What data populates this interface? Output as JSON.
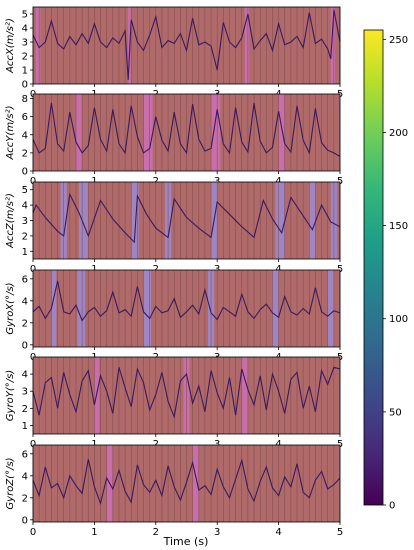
{
  "chart_data": {
    "type": "line",
    "xlabel": "Time (s)",
    "x_ticks": [
      "0",
      "1",
      "2",
      "3",
      "4",
      "5"
    ],
    "xlim": [
      0,
      5
    ],
    "line_color": "#3b1a5e",
    "background_color": "#b06a6a",
    "colormap": "viridis",
    "colorbar": {
      "ticks": [
        "0",
        "50",
        "100",
        "150",
        "200",
        "250"
      ],
      "range": [
        0,
        255
      ],
      "colors": [
        "#440154",
        "#482878",
        "#3e4989",
        "#31688e",
        "#26828e",
        "#1f9e89",
        "#35b779",
        "#6ece58",
        "#b5de2b",
        "#fde725"
      ]
    },
    "panels": [
      {
        "ylabel": "AccX(m/s²)",
        "ylim": [
          0,
          5.5
        ],
        "y_ticks": [
          "0",
          "1",
          "2",
          "3",
          "4",
          "5"
        ],
        "highlights": [
          {
            "x0": 0.05,
            "x1": 0.12,
            "color": "#d070c0"
          },
          {
            "x0": 1.55,
            "x1": 1.6,
            "color": "#d070c0"
          },
          {
            "x0": 3.45,
            "x1": 3.52,
            "color": "#d070c0"
          },
          {
            "x0": 4.85,
            "x1": 4.92,
            "color": "#d070c0"
          }
        ],
        "x": [
          0,
          0.1,
          0.2,
          0.3,
          0.4,
          0.5,
          0.6,
          0.7,
          0.8,
          0.9,
          1.0,
          1.1,
          1.2,
          1.3,
          1.4,
          1.5,
          1.55,
          1.6,
          1.7,
          1.8,
          1.9,
          2.0,
          2.1,
          2.2,
          2.3,
          2.4,
          2.5,
          2.6,
          2.7,
          2.8,
          2.9,
          3.0,
          3.1,
          3.2,
          3.3,
          3.4,
          3.5,
          3.6,
          3.7,
          3.8,
          3.9,
          4.0,
          4.1,
          4.2,
          4.3,
          4.4,
          4.5,
          4.6,
          4.7,
          4.8,
          4.85,
          4.9,
          5.0
        ],
        "values": [
          3.5,
          2.6,
          3.0,
          4.5,
          2.9,
          2.5,
          3.4,
          2.8,
          3.6,
          2.9,
          4.3,
          3.0,
          2.6,
          3.3,
          2.9,
          3.8,
          0.3,
          4.6,
          3.0,
          2.4,
          3.5,
          4.8,
          2.6,
          3.1,
          2.9,
          3.6,
          2.4,
          4.7,
          2.8,
          3.0,
          2.7,
          1.0,
          4.4,
          3.0,
          2.6,
          3.3,
          5.0,
          2.5,
          3.1,
          3.6,
          2.4,
          4.3,
          2.8,
          3.0,
          3.4,
          2.6,
          5.1,
          2.9,
          3.2,
          2.5,
          1.8,
          5.3,
          3.0
        ]
      },
      {
        "ylabel": "AccY(m/s²)",
        "ylim": [
          0,
          8.5
        ],
        "y_ticks": [
          "0",
          "2",
          "4",
          "6",
          "8"
        ],
        "highlights": [
          {
            "x0": 0.7,
            "x1": 0.8,
            "color": "#d070c0"
          },
          {
            "x0": 1.8,
            "x1": 1.95,
            "color": "#d070c0"
          },
          {
            "x0": 2.9,
            "x1": 3.05,
            "color": "#d070c0"
          },
          {
            "x0": 4.0,
            "x1": 4.1,
            "color": "#d070c0"
          }
        ],
        "x": [
          0,
          0.1,
          0.2,
          0.3,
          0.4,
          0.5,
          0.6,
          0.7,
          0.8,
          0.9,
          1.0,
          1.1,
          1.2,
          1.3,
          1.4,
          1.5,
          1.6,
          1.7,
          1.8,
          1.9,
          2.0,
          2.1,
          2.2,
          2.3,
          2.4,
          2.5,
          2.6,
          2.7,
          2.8,
          2.9,
          3.0,
          3.1,
          3.2,
          3.3,
          3.4,
          3.5,
          3.6,
          3.7,
          3.8,
          3.9,
          4.0,
          4.1,
          4.2,
          4.3,
          4.4,
          4.5,
          4.6,
          4.7,
          4.8,
          4.9,
          5.0
        ],
        "values": [
          3.5,
          2.0,
          2.5,
          7.5,
          3.0,
          2.2,
          6.5,
          3.2,
          2.0,
          2.8,
          7.0,
          3.5,
          2.2,
          6.8,
          3.0,
          2.0,
          7.2,
          3.8,
          2.0,
          2.5,
          6.0,
          3.4,
          2.2,
          6.5,
          3.0,
          2.0,
          7.4,
          3.5,
          2.2,
          2.5,
          6.8,
          3.0,
          2.0,
          7.0,
          3.2,
          2.1,
          7.5,
          3.3,
          2.0,
          2.6,
          6.6,
          3.0,
          2.1,
          7.2,
          3.4,
          2.0,
          6.9,
          3.1,
          2.3,
          2.0,
          1.6
        ]
      },
      {
        "ylabel": "AccZ(m/s²)",
        "ylim": [
          0.5,
          5.5
        ],
        "y_ticks": [
          "1",
          "2",
          "3",
          "4",
          "5"
        ],
        "highlights": [
          {
            "x0": 0.45,
            "x1": 0.55,
            "color": "#9a90e0"
          },
          {
            "x0": 0.75,
            "x1": 0.9,
            "color": "#9a90e0"
          },
          {
            "x0": 1.6,
            "x1": 1.72,
            "color": "#9a90e0"
          },
          {
            "x0": 2.15,
            "x1": 2.25,
            "color": "#9a90e0"
          },
          {
            "x0": 2.9,
            "x1": 3.0,
            "color": "#9a90e0"
          },
          {
            "x0": 3.95,
            "x1": 4.1,
            "color": "#9a90e0"
          },
          {
            "x0": 4.5,
            "x1": 4.6,
            "color": "#9a90e0"
          },
          {
            "x0": 4.85,
            "x1": 4.95,
            "color": "#9a90e0"
          }
        ],
        "x": [
          0,
          0.05,
          0.2,
          0.4,
          0.5,
          0.6,
          0.75,
          0.9,
          1.1,
          1.3,
          1.5,
          1.65,
          1.7,
          1.85,
          2.0,
          2.2,
          2.3,
          2.5,
          2.7,
          2.9,
          3.0,
          3.2,
          3.4,
          3.6,
          3.75,
          3.9,
          4.05,
          4.2,
          4.4,
          4.55,
          4.7,
          4.85,
          5.0
        ],
        "values": [
          3.5,
          4.0,
          3.2,
          2.3,
          2.0,
          4.7,
          3.5,
          2.0,
          4.3,
          3.1,
          2.2,
          1.6,
          4.6,
          3.4,
          2.5,
          1.9,
          4.4,
          3.2,
          2.5,
          1.9,
          4.2,
          3.4,
          2.6,
          1.9,
          4.3,
          3.1,
          2.2,
          4.5,
          3.3,
          2.4,
          4.0,
          2.9,
          2.6
        ]
      },
      {
        "ylabel": "GyroX(°/s)",
        "ylim": [
          -0.2,
          6.8
        ],
        "y_ticks": [
          "0",
          "2",
          "4",
          "6"
        ],
        "highlights": [
          {
            "x0": 0.3,
            "x1": 0.38,
            "color": "#9a90e0"
          },
          {
            "x0": 0.72,
            "x1": 0.85,
            "color": "#9a90e0"
          },
          {
            "x0": 1.8,
            "x1": 1.92,
            "color": "#9a90e0"
          },
          {
            "x0": 2.85,
            "x1": 2.95,
            "color": "#9a90e0"
          },
          {
            "x0": 3.9,
            "x1": 4.0,
            "color": "#9a90e0"
          },
          {
            "x0": 4.8,
            "x1": 4.9,
            "color": "#9a90e0"
          }
        ],
        "x": [
          0,
          0.1,
          0.2,
          0.3,
          0.4,
          0.5,
          0.6,
          0.7,
          0.8,
          0.9,
          1.0,
          1.1,
          1.2,
          1.3,
          1.4,
          1.5,
          1.6,
          1.7,
          1.8,
          1.9,
          2.0,
          2.1,
          2.2,
          2.3,
          2.4,
          2.5,
          2.6,
          2.7,
          2.8,
          2.9,
          3.0,
          3.1,
          3.2,
          3.3,
          3.4,
          3.5,
          3.6,
          3.7,
          3.8,
          3.9,
          4.0,
          4.1,
          4.2,
          4.3,
          4.4,
          4.5,
          4.6,
          4.7,
          4.8,
          4.9,
          5.0
        ],
        "values": [
          3.0,
          3.5,
          2.4,
          3.3,
          5.8,
          3.0,
          2.8,
          3.6,
          2.2,
          3.0,
          3.4,
          2.6,
          3.1,
          4.8,
          2.9,
          3.2,
          2.6,
          5.3,
          3.0,
          2.4,
          3.5,
          2.9,
          3.1,
          4.2,
          2.5,
          3.0,
          3.6,
          2.8,
          5.0,
          2.9,
          2.3,
          3.4,
          3.0,
          2.6,
          4.6,
          3.0,
          2.4,
          3.2,
          3.7,
          2.9,
          2.5,
          4.4,
          3.0,
          2.7,
          3.3,
          2.8,
          5.2,
          3.0,
          2.6,
          3.1,
          2.9
        ]
      },
      {
        "ylabel": "GyroY(°/s)",
        "ylim": [
          0.5,
          5.0
        ],
        "y_ticks": [
          "1",
          "2",
          "3",
          "4"
        ],
        "highlights": [
          {
            "x0": 1.0,
            "x1": 1.08,
            "color": "#d070c0"
          },
          {
            "x0": 2.45,
            "x1": 2.55,
            "color": "#d070c0"
          },
          {
            "x0": 3.4,
            "x1": 3.5,
            "color": "#d070c0"
          }
        ],
        "x": [
          0,
          0.1,
          0.2,
          0.3,
          0.4,
          0.5,
          0.6,
          0.7,
          0.8,
          0.9,
          1.0,
          1.1,
          1.2,
          1.3,
          1.4,
          1.5,
          1.6,
          1.7,
          1.8,
          1.9,
          2.0,
          2.1,
          2.2,
          2.3,
          2.4,
          2.5,
          2.6,
          2.7,
          2.8,
          2.9,
          3.0,
          3.1,
          3.2,
          3.3,
          3.4,
          3.5,
          3.6,
          3.7,
          3.8,
          3.9,
          4.0,
          4.1,
          4.2,
          4.3,
          4.4,
          4.5,
          4.6,
          4.7,
          4.8,
          4.9,
          5.0
        ],
        "values": [
          3.0,
          1.6,
          3.5,
          3.8,
          2.0,
          4.1,
          2.8,
          1.8,
          3.6,
          4.2,
          2.2,
          3.9,
          3.0,
          1.7,
          4.4,
          3.2,
          2.1,
          4.3,
          3.5,
          1.9,
          2.8,
          4.1,
          2.4,
          1.5,
          3.6,
          4.0,
          2.3,
          3.3,
          1.8,
          4.2,
          2.9,
          2.0,
          3.8,
          1.6,
          4.3,
          3.1,
          2.2,
          3.9,
          1.9,
          4.0,
          3.0,
          1.7,
          3.7,
          4.1,
          2.0,
          3.3,
          1.8,
          4.2,
          3.4,
          4.4,
          4.3
        ]
      },
      {
        "ylabel": "GyroZ(°/s)",
        "ylim": [
          -0.2,
          6.8
        ],
        "y_ticks": [
          "0",
          "2",
          "4",
          "6"
        ],
        "highlights": [
          {
            "x0": 1.2,
            "x1": 1.3,
            "color": "#d070c0"
          },
          {
            "x0": 2.6,
            "x1": 2.7,
            "color": "#d070c0"
          }
        ],
        "x": [
          0,
          0.1,
          0.2,
          0.3,
          0.4,
          0.5,
          0.6,
          0.7,
          0.8,
          0.9,
          1.0,
          1.1,
          1.2,
          1.3,
          1.4,
          1.5,
          1.6,
          1.7,
          1.8,
          1.9,
          2.0,
          2.1,
          2.2,
          2.3,
          2.4,
          2.5,
          2.6,
          2.7,
          2.8,
          2.9,
          3.0,
          3.1,
          3.2,
          3.3,
          3.4,
          3.5,
          3.6,
          3.7,
          3.8,
          3.9,
          4.0,
          4.1,
          4.2,
          4.3,
          4.4,
          4.5,
          4.6,
          4.7,
          4.8,
          4.9,
          5.0
        ],
        "values": [
          3.6,
          2.2,
          4.8,
          2.9,
          3.3,
          2.0,
          4.0,
          3.1,
          2.4,
          5.5,
          3.0,
          1.5,
          3.8,
          2.8,
          4.5,
          2.6,
          1.6,
          5.0,
          3.2,
          2.5,
          3.6,
          2.2,
          4.9,
          3.0,
          1.8,
          3.4,
          5.2,
          2.7,
          3.1,
          2.3,
          4.6,
          3.0,
          2.0,
          3.7,
          5.4,
          2.8,
          1.7,
          3.5,
          4.8,
          2.9,
          2.2,
          3.9,
          3.0,
          5.1,
          2.5,
          2.0,
          3.6,
          4.4,
          2.8,
          3.2,
          3.8
        ]
      }
    ]
  }
}
